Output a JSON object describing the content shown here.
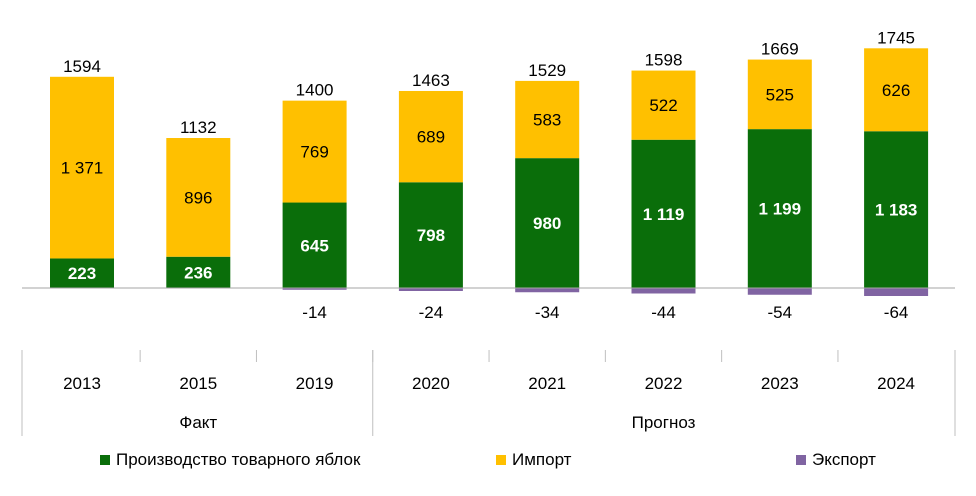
{
  "chart_data": {
    "type": "bar",
    "stacked": true,
    "categories": [
      "2013",
      "2015",
      "2019",
      "2020",
      "2021",
      "2022",
      "2023",
      "2024"
    ],
    "category_groups": [
      {
        "label": "Факт",
        "categories": [
          "2013",
          "2015",
          "2019"
        ]
      },
      {
        "label": "Прогноз",
        "categories": [
          "2020",
          "2021",
          "2022",
          "2023",
          "2024"
        ]
      }
    ],
    "series": [
      {
        "name": "Производство товарного яблок",
        "color": "#0a6e0a",
        "values": [
          223,
          236,
          645,
          798,
          980,
          1119,
          1199,
          1183
        ],
        "labels": [
          "223",
          "236",
          "645",
          "798",
          "980",
          "1 119",
          "1 199",
          "1 183"
        ]
      },
      {
        "name": "Импорт",
        "color": "#ffc000",
        "values": [
          1371,
          896,
          769,
          689,
          583,
          522,
          525,
          626
        ],
        "labels": [
          "1 371",
          "896",
          "769",
          "689",
          "583",
          "522",
          "525",
          "626"
        ]
      },
      {
        "name": "Экспорт",
        "color": "#8064a2",
        "values": [
          0,
          0,
          -14,
          -24,
          -34,
          -44,
          -54,
          -64
        ],
        "labels": [
          "",
          "",
          "-14",
          "-24",
          "-34",
          "-44",
          "-54",
          "-64"
        ]
      }
    ],
    "totals": [
      "1594",
      "1132",
      "1400",
      "1463",
      "1529",
      "1598",
      "1669",
      "1745"
    ],
    "legend_position": "bottom",
    "grid": false
  }
}
